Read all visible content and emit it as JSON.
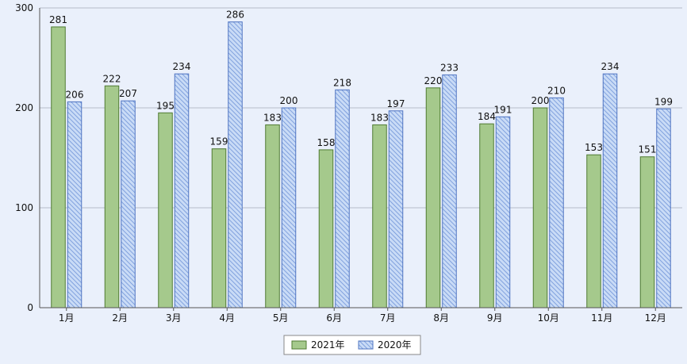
{
  "chart_data": {
    "type": "bar",
    "title": "",
    "xlabel": "",
    "ylabel": "",
    "ylim": [
      0,
      300
    ],
    "yticks": [
      0,
      100,
      200,
      300
    ],
    "grid": true,
    "legend_position": "bottom-center",
    "categories": [
      "1月",
      "2月",
      "3月",
      "4月",
      "5月",
      "6月",
      "7月",
      "8月",
      "9月",
      "10月",
      "11月",
      "12月"
    ],
    "series": [
      {
        "name": "2021年",
        "color": "#a5c98c",
        "style": "solid",
        "values": [
          281,
          222,
          195,
          159,
          183,
          158,
          183,
          220,
          184,
          200,
          153,
          151
        ],
        "labels": [
          "281",
          "222",
          "195",
          "159",
          "183",
          "158",
          "183",
          "220",
          "184",
          "200",
          "153",
          "151"
        ]
      },
      {
        "name": "2020年",
        "color": "#aec6ee",
        "style": "hatched",
        "values": [
          206,
          207,
          234,
          286,
          200,
          218,
          197,
          233,
          191,
          210,
          234,
          199
        ],
        "labels": [
          "206",
          "207",
          "234",
          "286",
          "200",
          "218",
          "197",
          "233",
          "191",
          "210",
          "234",
          "199"
        ]
      }
    ]
  }
}
